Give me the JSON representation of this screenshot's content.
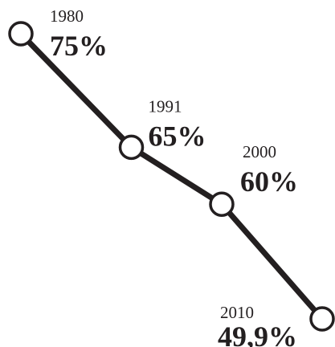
{
  "chart_data": {
    "type": "line",
    "title": "",
    "xlabel": "",
    "ylabel": "",
    "x": [
      "1980",
      "1991",
      "2000",
      "2010"
    ],
    "series": [
      {
        "values": [
          75,
          65,
          60,
          49.9
        ],
        "value_labels": [
          "75%",
          "65%",
          "60%",
          "49,9%"
        ]
      }
    ],
    "grid": false,
    "legend": "none",
    "colors": {
      "line": "#231f20",
      "marker_fill": "#ffffff",
      "text": "#231f20"
    }
  }
}
